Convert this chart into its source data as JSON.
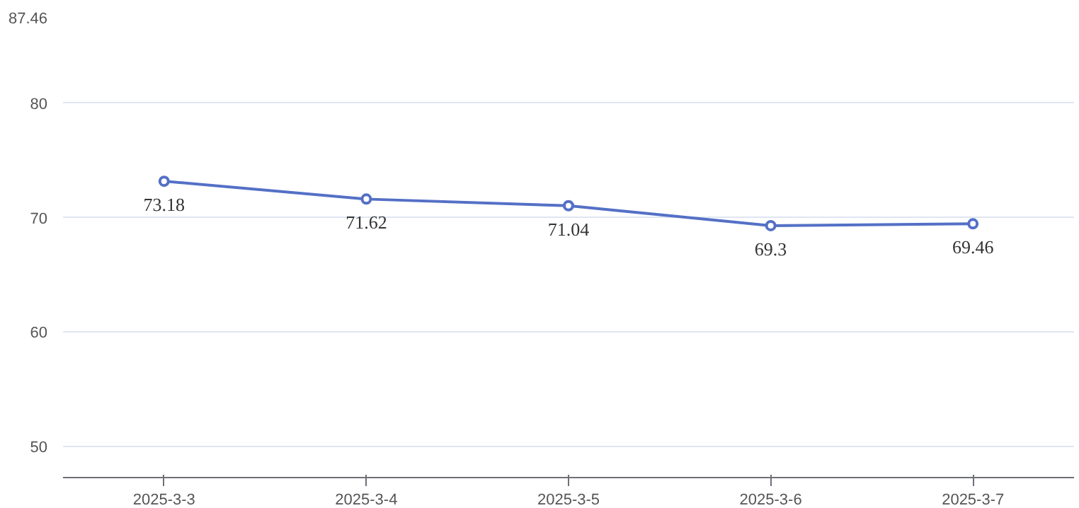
{
  "chart_data": {
    "type": "line",
    "categories": [
      "2025-3-3",
      "2025-3-4",
      "2025-3-5",
      "2025-3-6",
      "2025-3-7"
    ],
    "series": [
      {
        "color": "#5470c6",
        "values": [
          73.18,
          71.62,
          71.04,
          69.3,
          69.46
        ]
      }
    ],
    "ylim": [
      47.3,
      87.46
    ],
    "yticks": [
      50,
      60,
      70,
      80,
      87.46
    ],
    "grid": "y",
    "marker": "circle",
    "line_style": "solid",
    "data_labels": true
  }
}
